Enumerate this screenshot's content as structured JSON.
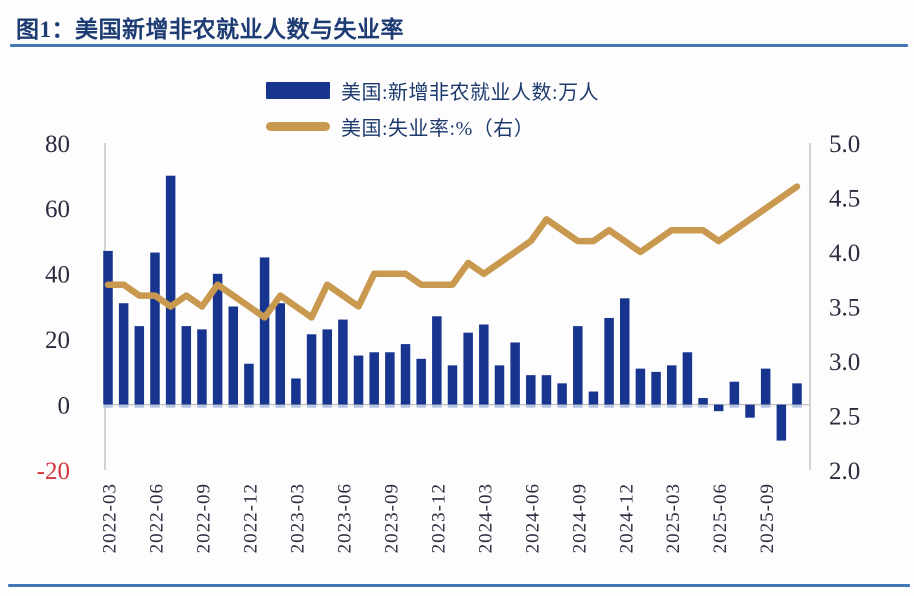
{
  "header": {
    "title": "图1：美国新增非农就业人数与失业率"
  },
  "legend": [
    {
      "label": "美国:新增非农就业人数:万人",
      "type": "bar",
      "color": "#17348f"
    },
    {
      "label": "美国:失业率:%（右）",
      "type": "line",
      "color": "#c9994f"
    }
  ],
  "colors": {
    "bar": "#17348f",
    "bar_base_tick": "#a9bde3",
    "line": "#c9994f",
    "title": "#1e3c74",
    "rule_blue": "#4377b6",
    "tick_text": "#2b2b3f",
    "negative_tick_text": "#d4353c",
    "axis_line": "#c6c6c6"
  },
  "chart_data": {
    "type": "bar",
    "title": "图1：美国新增非农就业人数与失业率",
    "x": [
      "2022-03",
      "2022-04",
      "2022-05",
      "2022-06",
      "2022-07",
      "2022-08",
      "2022-09",
      "2022-10",
      "2022-11",
      "2022-12",
      "2023-01",
      "2023-02",
      "2023-03",
      "2023-04",
      "2023-05",
      "2023-06",
      "2023-07",
      "2023-08",
      "2023-09",
      "2023-10",
      "2023-11",
      "2023-12",
      "2024-01",
      "2024-02",
      "2024-03",
      "2024-04",
      "2024-05",
      "2024-06",
      "2024-07",
      "2024-08",
      "2024-09",
      "2024-10",
      "2024-11",
      "2024-12",
      "2025-01",
      "2025-02",
      "2025-03",
      "2025-04",
      "2025-05",
      "2025-06",
      "2025-07",
      "2025-08",
      "2025-09",
      "2025-10",
      "2025-11"
    ],
    "series": [
      {
        "name": "美国:新增非农就业人数:万人",
        "type": "bar",
        "axis": "left",
        "unit": "万人",
        "color": "#17348f",
        "values": [
          47,
          31,
          24,
          46.5,
          70,
          24,
          23,
          40,
          30,
          12.5,
          45,
          31,
          8,
          21.5,
          23,
          26,
          15,
          16,
          16,
          18.5,
          14,
          27,
          12,
          22,
          24.5,
          12,
          19,
          9,
          9,
          6.5,
          24,
          4,
          26.5,
          32.5,
          11,
          10,
          12,
          16,
          2,
          -2,
          7,
          -4,
          11,
          -11,
          6.5
        ]
      },
      {
        "name": "美国:失业率:%（右）",
        "type": "line",
        "axis": "right",
        "unit": "%",
        "color": "#c9994f",
        "values": [
          3.7,
          3.7,
          3.6,
          3.6,
          3.5,
          3.6,
          3.5,
          3.7,
          3.6,
          3.5,
          3.4,
          3.6,
          3.5,
          3.4,
          3.7,
          3.6,
          3.5,
          3.8,
          3.8,
          3.8,
          3.7,
          3.7,
          3.7,
          3.9,
          3.8,
          3.9,
          4.0,
          4.1,
          4.3,
          4.2,
          4.1,
          4.1,
          4.2,
          4.1,
          4.0,
          4.1,
          4.2,
          4.2,
          4.2,
          4.1,
          4.2,
          4.3,
          4.4,
          4.5,
          4.6
        ]
      }
    ],
    "left_axis": {
      "ticks": [
        80,
        60,
        40,
        20,
        0,
        -20
      ],
      "range": [
        -20,
        80
      ]
    },
    "right_axis": {
      "ticks": [
        "5.0",
        "4.5",
        "4.0",
        "3.5",
        "3.0",
        "2.5",
        "2.0"
      ],
      "range": [
        2.0,
        5.0
      ]
    },
    "x_tick_labels": [
      "2022-03",
      "2022-06",
      "2022-09",
      "2022-12",
      "2023-03",
      "2023-06",
      "2023-09",
      "2023-12",
      "2024-03",
      "2024-06",
      "2024-09",
      "2024-12",
      "2025-03",
      "2025-06",
      "2025-09"
    ],
    "x_tick_every": 3,
    "grid": "none",
    "legend_position": "top-center"
  }
}
